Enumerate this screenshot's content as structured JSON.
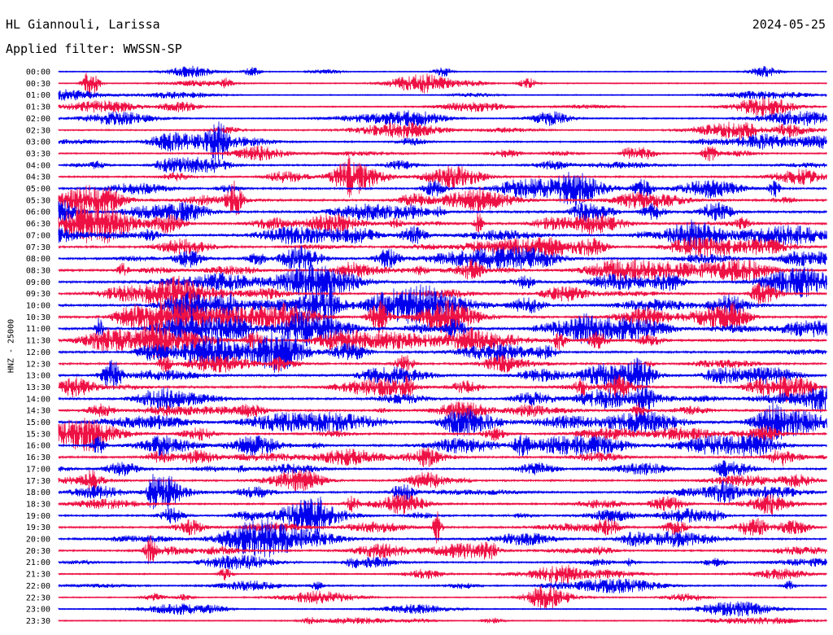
{
  "header": {
    "station": "HL Giannouli, Larissa",
    "date": "2024-05-25",
    "filter": "Applied filter: WWSSN-SP"
  },
  "chart_data": {
    "type": "line",
    "title": "HL Giannouli, Larissa",
    "subtitle": "Applied filter: WWSSN-SP",
    "date": "2024-05-25",
    "ylabel": "HNZ - 25000",
    "xlabel": "",
    "grid": false,
    "trace_colors": [
      "#0000ee",
      "#ee1144"
    ],
    "rows": [
      "00:00",
      "00:30",
      "01:00",
      "01:30",
      "02:00",
      "02:30",
      "03:00",
      "03:30",
      "04:00",
      "04:30",
      "05:00",
      "05:30",
      "06:00",
      "06:30",
      "07:00",
      "07:30",
      "08:00",
      "08:30",
      "09:00",
      "09:30",
      "10:00",
      "10:30",
      "11:00",
      "11:30",
      "12:00",
      "12:30",
      "13:00",
      "13:30",
      "14:00",
      "14:30",
      "15:00",
      "15:30",
      "16:00",
      "16:30",
      "17:00",
      "17:30",
      "18:00",
      "18:30",
      "19:00",
      "19:30",
      "20:00",
      "20:30",
      "21:00",
      "21:30",
      "22:00",
      "22:30",
      "23:00",
      "23:30"
    ],
    "activity": [
      0.15,
      0.2,
      0.15,
      0.25,
      0.3,
      0.35,
      0.4,
      0.35,
      0.45,
      0.5,
      0.6,
      0.65,
      0.75,
      0.7,
      0.75,
      0.65,
      0.7,
      0.7,
      0.65,
      0.6,
      0.75,
      0.75,
      0.8,
      0.75,
      0.65,
      0.6,
      0.65,
      0.7,
      0.65,
      0.6,
      0.75,
      0.6,
      0.7,
      0.6,
      0.5,
      0.55,
      0.55,
      0.5,
      0.5,
      0.55,
      0.5,
      0.45,
      0.45,
      0.3,
      0.35,
      0.25,
      0.2,
      0.2
    ]
  }
}
